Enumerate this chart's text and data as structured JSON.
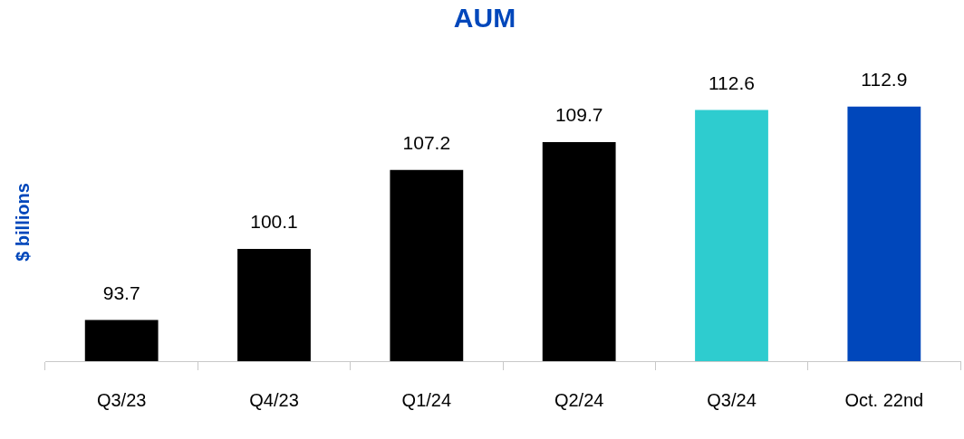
{
  "chart_data": {
    "type": "bar",
    "title": "AUM",
    "ylabel": "$ billions",
    "categories": [
      "Q3/23",
      "Q4/23",
      "Q1/24",
      "Q2/24",
      "Q3/24",
      "Oct. 22nd"
    ],
    "values": [
      93.7,
      100.1,
      107.2,
      109.7,
      112.6,
      112.9
    ],
    "colors": [
      "#000000",
      "#000000",
      "#000000",
      "#000000",
      "#2ecccf",
      "#0047bb"
    ],
    "data_labels": true,
    "grid": false,
    "legend": false
  }
}
